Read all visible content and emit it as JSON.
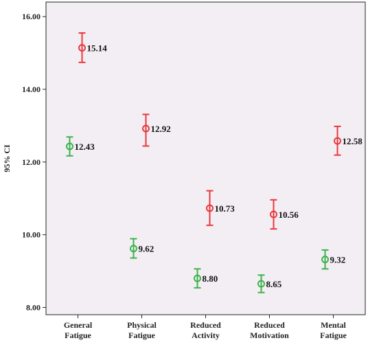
{
  "chart_data": {
    "type": "scatter",
    "title": "",
    "ylabel": "95% CI",
    "xlabel": "",
    "ylim": [
      7.8,
      16.4
    ],
    "yticks": [
      "8.00",
      "10.00",
      "12.00",
      "14.00",
      "16.00"
    ],
    "ytick_values": [
      8,
      10,
      12,
      14,
      16
    ],
    "categories": [
      [
        "General",
        "Fatigue"
      ],
      [
        "Physical",
        "Fatigue"
      ],
      [
        "Reduced",
        "Activity"
      ],
      [
        "Reduced",
        "Motivation"
      ],
      [
        "Mental",
        "Fatigue"
      ]
    ],
    "grid": false,
    "legend": "none",
    "series": [
      {
        "color": "#3cb34a",
        "values": [
          12.43,
          9.62,
          8.8,
          8.65,
          9.32
        ],
        "labels": [
          "12.43",
          "9.62",
          "8.80",
          "8.65",
          "9.32"
        ],
        "ci_low": [
          12.17,
          9.36,
          8.54,
          8.41,
          9.06
        ],
        "ci_high": [
          12.69,
          9.89,
          9.06,
          8.89,
          9.58
        ]
      },
      {
        "color": "#e8383d",
        "values": [
          15.14,
          12.92,
          10.73,
          10.56,
          12.58
        ],
        "labels": [
          "15.14",
          "12.92",
          "10.73",
          "10.56",
          "12.58"
        ],
        "ci_low": [
          14.74,
          12.44,
          10.26,
          10.16,
          12.19
        ],
        "ci_high": [
          15.55,
          13.31,
          11.21,
          10.96,
          12.98
        ]
      }
    ]
  },
  "colors": {
    "plot_background": "#f3eef4",
    "axis": "#222222"
  }
}
